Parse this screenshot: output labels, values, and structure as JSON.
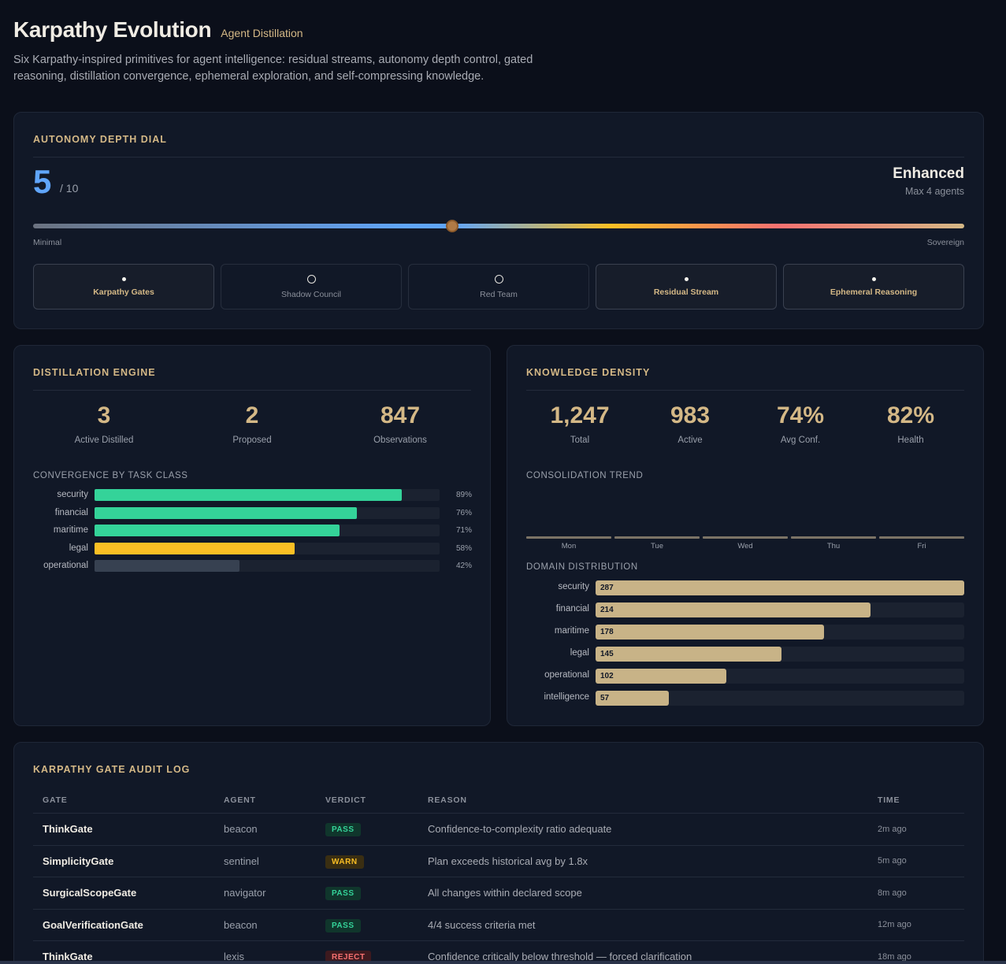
{
  "header": {
    "title": "Karpathy Evolution",
    "subtitle": "Agent Distillation",
    "description": "Six Karpathy-inspired primitives for agent intelligence: residual streams, autonomy depth control, gated reasoning, distillation convergence, ephemeral exploration, and self-compressing knowledge."
  },
  "autonomy": {
    "title": "AUTONOMY DEPTH DIAL",
    "value": "5",
    "max_label": "/ 10",
    "level_name": "Enhanced",
    "level_detail": "Max 4 agents",
    "slider_min_label": "Minimal",
    "slider_max_label": "Sovereign",
    "slider_level": 0.45,
    "features": [
      {
        "label": "Karpathy Gates",
        "enabled": true
      },
      {
        "label": "Shadow Council",
        "enabled": false
      },
      {
        "label": "Red Team",
        "enabled": false
      },
      {
        "label": "Residual Stream",
        "enabled": true
      },
      {
        "label": "Ephemeral Reasoning",
        "enabled": true
      }
    ]
  },
  "distillation": {
    "title": "DISTILLATION ENGINE",
    "stats": [
      {
        "value": "3",
        "label": "Active Distilled"
      },
      {
        "value": "2",
        "label": "Proposed"
      },
      {
        "value": "847",
        "label": "Observations"
      }
    ],
    "convergence_title": "CONVERGENCE BY TASK CLASS",
    "convergence": [
      {
        "name": "security",
        "percent": 89,
        "percent_label": "89%",
        "color": "#34d399"
      },
      {
        "name": "financial",
        "percent": 76,
        "percent_label": "76%",
        "color": "#34d399"
      },
      {
        "name": "maritime",
        "percent": 71,
        "percent_label": "71%",
        "color": "#34d399"
      },
      {
        "name": "legal",
        "percent": 58,
        "percent_label": "58%",
        "color": "#fbbf24"
      },
      {
        "name": "operational",
        "percent": 42,
        "percent_label": "42%",
        "color": "#374151"
      }
    ]
  },
  "knowledge": {
    "title": "KNOWLEDGE DENSITY",
    "stats": [
      {
        "value": "1,247",
        "label": "Total"
      },
      {
        "value": "983",
        "label": "Active"
      },
      {
        "value": "74%",
        "label": "Avg Conf."
      },
      {
        "value": "82%",
        "label": "Health"
      }
    ],
    "trend_title": "CONSOLIDATION TREND",
    "trend_days": [
      "Mon",
      "Tue",
      "Wed",
      "Thu",
      "Fri"
    ],
    "domain_title": "DOMAIN DISTRIBUTION",
    "domains": [
      {
        "name": "security",
        "count": 287
      },
      {
        "name": "financial",
        "count": 214
      },
      {
        "name": "maritime",
        "count": 178
      },
      {
        "name": "legal",
        "count": 145
      },
      {
        "name": "operational",
        "count": 102
      },
      {
        "name": "intelligence",
        "count": 57
      }
    ]
  },
  "audit": {
    "title": "KARPATHY GATE AUDIT LOG",
    "columns": [
      "GATE",
      "AGENT",
      "VERDICT",
      "REASON",
      "TIME"
    ],
    "rows": [
      {
        "gate": "ThinkGate",
        "agent": "beacon",
        "verdict": "PASS",
        "reason": "Confidence-to-complexity ratio adequate",
        "time": "2m ago"
      },
      {
        "gate": "SimplicityGate",
        "agent": "sentinel",
        "verdict": "WARN",
        "reason": "Plan exceeds historical avg by 1.8x",
        "time": "5m ago"
      },
      {
        "gate": "SurgicalScopeGate",
        "agent": "navigator",
        "verdict": "PASS",
        "reason": "All changes within declared scope",
        "time": "8m ago"
      },
      {
        "gate": "GoalVerificationGate",
        "agent": "beacon",
        "verdict": "PASS",
        "reason": "4/4 success criteria met",
        "time": "12m ago"
      },
      {
        "gate": "ThinkGate",
        "agent": "lexis",
        "verdict": "REJECT",
        "reason": "Confidence critically below threshold — forced clarification",
        "time": "18m ago"
      }
    ]
  }
}
